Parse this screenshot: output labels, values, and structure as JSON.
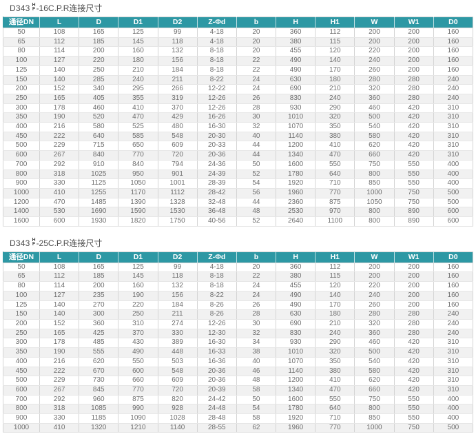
{
  "colors": {
    "header_bg": "#2d98a4",
    "header_text": "#ffffff",
    "row_alt_bg": "#f1f1f1",
    "cell_text": "#6e6e6e",
    "title_text": "#4d4d4d",
    "vertical_border": "#d4d4d4",
    "horizontal_border": "#e6e6e6"
  },
  "tables": [
    {
      "title": {
        "model": "D343",
        "frac_top": "H",
        "frac_bottom": "F",
        "suffix": "-16C.P.R连接尺寸"
      },
      "columns": [
        "通径DN",
        "L",
        "D",
        "D1",
        "D2",
        "Z-Φd",
        "b",
        "H",
        "H1",
        "W",
        "W1",
        "D0"
      ],
      "rows": [
        [
          50,
          108,
          165,
          125,
          99,
          "4-18",
          20,
          360,
          112,
          200,
          200,
          160
        ],
        [
          65,
          112,
          185,
          145,
          118,
          "4-18",
          20,
          380,
          115,
          200,
          200,
          160
        ],
        [
          80,
          114,
          200,
          160,
          132,
          "8-18",
          20,
          455,
          120,
          220,
          200,
          160
        ],
        [
          100,
          127,
          220,
          180,
          156,
          "8-18",
          22,
          490,
          140,
          240,
          200,
          160
        ],
        [
          125,
          140,
          250,
          210,
          184,
          "8-18",
          22,
          490,
          170,
          260,
          200,
          160
        ],
        [
          150,
          140,
          285,
          240,
          211,
          "8-22",
          24,
          630,
          180,
          280,
          280,
          240
        ],
        [
          200,
          152,
          340,
          295,
          266,
          "12-22",
          24,
          690,
          210,
          320,
          280,
          240
        ],
        [
          250,
          165,
          405,
          355,
          319,
          "12-26",
          26,
          830,
          240,
          360,
          280,
          240
        ],
        [
          300,
          178,
          460,
          410,
          370,
          "12-26",
          28,
          930,
          290,
          460,
          420,
          310
        ],
        [
          350,
          190,
          520,
          470,
          429,
          "16-26",
          30,
          1010,
          320,
          500,
          420,
          310
        ],
        [
          400,
          216,
          580,
          525,
          480,
          "16-30",
          32,
          1070,
          350,
          540,
          420,
          310
        ],
        [
          450,
          222,
          640,
          585,
          548,
          "20-30",
          40,
          1140,
          380,
          580,
          420,
          310
        ],
        [
          500,
          229,
          715,
          650,
          609,
          "20-33",
          44,
          1200,
          410,
          620,
          420,
          310
        ],
        [
          600,
          267,
          840,
          770,
          720,
          "20-36",
          44,
          1340,
          470,
          660,
          420,
          310
        ],
        [
          700,
          292,
          910,
          840,
          794,
          "24-36",
          50,
          1600,
          550,
          750,
          550,
          400
        ],
        [
          800,
          318,
          1025,
          950,
          901,
          "24-39",
          52,
          1780,
          640,
          800,
          550,
          400
        ],
        [
          900,
          330,
          1125,
          1050,
          1001,
          "28-39",
          54,
          1920,
          710,
          850,
          550,
          400
        ],
        [
          1000,
          410,
          1255,
          1170,
          1112,
          "28-42",
          56,
          1960,
          770,
          1000,
          750,
          500
        ],
        [
          1200,
          470,
          1485,
          1390,
          1328,
          "32-48",
          44,
          2360,
          875,
          1050,
          750,
          500
        ],
        [
          1400,
          530,
          1690,
          1590,
          1530,
          "36-48",
          48,
          2530,
          970,
          800,
          890,
          600
        ],
        [
          1600,
          600,
          1930,
          1820,
          1750,
          "40-56",
          52,
          2640,
          1100,
          800,
          890,
          600
        ]
      ]
    },
    {
      "title": {
        "model": "D343",
        "frac_top": "H",
        "frac_bottom": "F",
        "suffix": "-25C.P.R连接尺寸"
      },
      "columns": [
        "通径DN",
        "L",
        "D",
        "D1",
        "D2",
        "Z-Φd",
        "b",
        "H",
        "H1",
        "W",
        "W1",
        "D0"
      ],
      "rows": [
        [
          50,
          108,
          165,
          125,
          99,
          "4-18",
          20,
          360,
          112,
          200,
          200,
          160
        ],
        [
          65,
          112,
          185,
          145,
          118,
          "8-18",
          22,
          380,
          115,
          200,
          200,
          160
        ],
        [
          80,
          114,
          200,
          160,
          132,
          "8-18",
          24,
          455,
          120,
          220,
          200,
          160
        ],
        [
          100,
          127,
          235,
          190,
          156,
          "8-22",
          24,
          490,
          140,
          240,
          200,
          160
        ],
        [
          125,
          140,
          270,
          220,
          184,
          "8-26",
          26,
          490,
          170,
          260,
          200,
          160
        ],
        [
          150,
          140,
          300,
          250,
          211,
          "8-26",
          28,
          630,
          180,
          280,
          280,
          240
        ],
        [
          200,
          152,
          360,
          310,
          274,
          "12-26",
          30,
          690,
          210,
          320,
          280,
          240
        ],
        [
          250,
          165,
          425,
          370,
          330,
          "12-30",
          32,
          830,
          240,
          360,
          280,
          240
        ],
        [
          300,
          178,
          485,
          430,
          389,
          "16-30",
          34,
          930,
          290,
          460,
          420,
          310
        ],
        [
          350,
          190,
          555,
          490,
          448,
          "16-33",
          38,
          1010,
          320,
          500,
          420,
          310
        ],
        [
          400,
          216,
          620,
          550,
          503,
          "16-36",
          40,
          1070,
          350,
          540,
          420,
          310
        ],
        [
          450,
          222,
          670,
          600,
          548,
          "20-36",
          46,
          1140,
          380,
          580,
          420,
          310
        ],
        [
          500,
          229,
          730,
          660,
          609,
          "20-36",
          48,
          1200,
          410,
          620,
          420,
          310
        ],
        [
          600,
          267,
          845,
          770,
          720,
          "20-39",
          58,
          1340,
          470,
          660,
          420,
          310
        ],
        [
          700,
          292,
          960,
          875,
          820,
          "24-42",
          50,
          1600,
          550,
          750,
          550,
          400
        ],
        [
          800,
          318,
          1085,
          990,
          928,
          "24-48",
          54,
          1780,
          640,
          800,
          550,
          400
        ],
        [
          900,
          330,
          1185,
          1090,
          1028,
          "28-48",
          58,
          1920,
          710,
          850,
          550,
          400
        ],
        [
          1000,
          410,
          1320,
          1210,
          1140,
          "28-55",
          62,
          1960,
          770,
          1000,
          750,
          500
        ]
      ]
    }
  ]
}
